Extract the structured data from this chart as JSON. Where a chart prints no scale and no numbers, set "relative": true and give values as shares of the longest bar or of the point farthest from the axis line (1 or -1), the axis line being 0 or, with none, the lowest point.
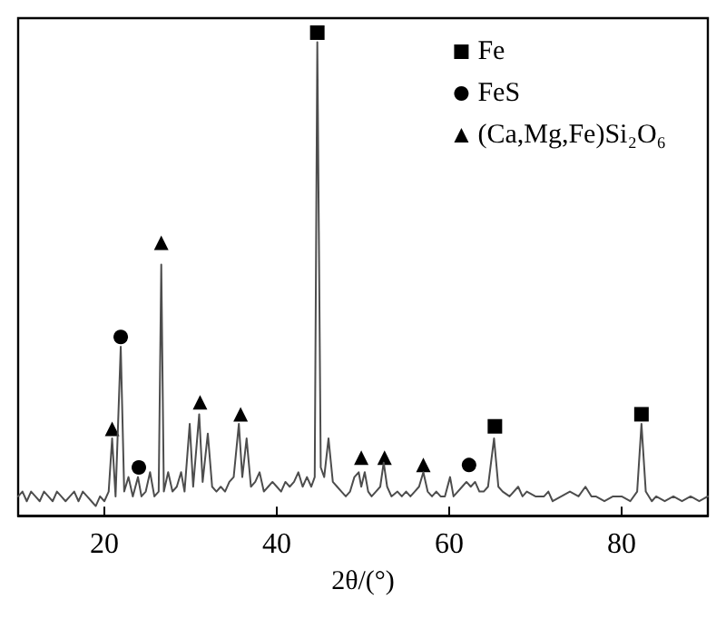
{
  "chart_data": {
    "type": "scatter",
    "relative": true,
    "xlabel": "2θ/(°)",
    "xlim": [
      10,
      90
    ],
    "xticks": [
      20,
      40,
      60,
      80
    ],
    "grid": false,
    "legend": "top right",
    "series": [
      {
        "type": "line",
        "color": "#4d4d4d",
        "marker": "none",
        "x": [
          10,
          10.5,
          11,
          11.5,
          12,
          12.5,
          13,
          13.5,
          14,
          14.5,
          15,
          15.5,
          16,
          16.5,
          17,
          17.5,
          18,
          18.5,
          19,
          19.5,
          20,
          20.5,
          20.9,
          21.3,
          21.9,
          22.3,
          22.8,
          23.3,
          23.9,
          24.3,
          24.8,
          25.3,
          25.8,
          26.3,
          26.6,
          26.9,
          27.4,
          27.9,
          28.4,
          28.9,
          29.3,
          29.9,
          30.3,
          31.0,
          31.4,
          32.0,
          32.5,
          33,
          33.5,
          34,
          34.5,
          35,
          35.6,
          36,
          36.5,
          37,
          37.5,
          38,
          38.5,
          39,
          39.5,
          40,
          40.5,
          41,
          41.5,
          42,
          42.5,
          43,
          43.5,
          44,
          44.4,
          44.7,
          45.1,
          45.5,
          46.0,
          46.5,
          47,
          47.5,
          48,
          48.5,
          49,
          49.5,
          49.8,
          50.2,
          50.6,
          51,
          51.5,
          52,
          52.4,
          52.8,
          53.3,
          54,
          54.5,
          55,
          55.5,
          56,
          56.5,
          57,
          57.5,
          58,
          58.5,
          59,
          59.5,
          60.1,
          60.5,
          61,
          61.5,
          62,
          62.5,
          63,
          63.5,
          64,
          64.5,
          65.2,
          65.7,
          66.2,
          67,
          68,
          68.5,
          69,
          70,
          71,
          71.5,
          72,
          73,
          74,
          75,
          75.8,
          76.5,
          77,
          78,
          79,
          80,
          81,
          81.8,
          82.3,
          82.8,
          83.5,
          84,
          85,
          86,
          87,
          88,
          89,
          90
        ],
        "values": [
          0.04,
          0.05,
          0.03,
          0.05,
          0.04,
          0.03,
          0.05,
          0.04,
          0.03,
          0.05,
          0.04,
          0.03,
          0.04,
          0.05,
          0.03,
          0.05,
          0.04,
          0.03,
          0.02,
          0.04,
          0.03,
          0.05,
          0.16,
          0.04,
          0.35,
          0.05,
          0.08,
          0.04,
          0.08,
          0.04,
          0.05,
          0.09,
          0.04,
          0.05,
          0.52,
          0.05,
          0.09,
          0.05,
          0.06,
          0.09,
          0.05,
          0.19,
          0.06,
          0.21,
          0.07,
          0.17,
          0.06,
          0.05,
          0.06,
          0.05,
          0.07,
          0.08,
          0.19,
          0.08,
          0.16,
          0.06,
          0.07,
          0.09,
          0.05,
          0.06,
          0.07,
          0.06,
          0.05,
          0.07,
          0.06,
          0.07,
          0.09,
          0.06,
          0.08,
          0.06,
          0.08,
          0.98,
          0.1,
          0.08,
          0.16,
          0.07,
          0.06,
          0.05,
          0.04,
          0.05,
          0.08,
          0.09,
          0.06,
          0.09,
          0.05,
          0.04,
          0.05,
          0.06,
          0.11,
          0.06,
          0.04,
          0.05,
          0.04,
          0.05,
          0.04,
          0.05,
          0.06,
          0.09,
          0.05,
          0.04,
          0.05,
          0.04,
          0.04,
          0.08,
          0.04,
          0.05,
          0.06,
          0.07,
          0.06,
          0.07,
          0.05,
          0.05,
          0.06,
          0.16,
          0.06,
          0.05,
          0.04,
          0.06,
          0.04,
          0.05,
          0.04,
          0.04,
          0.05,
          0.03,
          0.04,
          0.05,
          0.04,
          0.06,
          0.04,
          0.04,
          0.03,
          0.04,
          0.04,
          0.03,
          0.05,
          0.19,
          0.05,
          0.03,
          0.04,
          0.03,
          0.04,
          0.03,
          0.04,
          0.03,
          0.04
        ]
      },
      {
        "name": "Fe",
        "color": "#000000",
        "marker": "square",
        "x": [
          44.7,
          65.3,
          82.3
        ],
        "values": [
          1.0,
          0.185,
          0.21
        ]
      },
      {
        "name": "FeS",
        "color": "#000000",
        "marker": "circle",
        "x": [
          21.9,
          24.0,
          62.3
        ],
        "values": [
          0.37,
          0.1,
          0.105
        ]
      },
      {
        "name": "(Ca,Mg,Fe)Si₂O₆",
        "color": "#000000",
        "marker": "triangle",
        "x": [
          20.9,
          26.6,
          31.1,
          35.8,
          49.8,
          52.5,
          57.0
        ],
        "values": [
          0.18,
          0.565,
          0.235,
          0.21,
          0.12,
          0.12,
          0.105
        ]
      }
    ]
  }
}
